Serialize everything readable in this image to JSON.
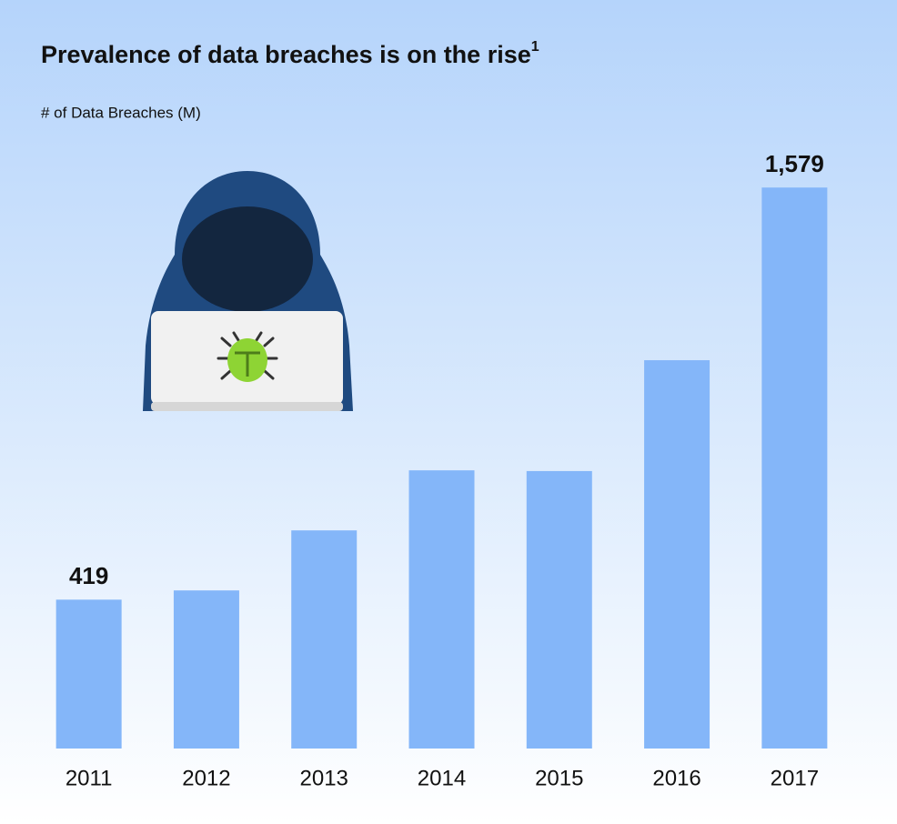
{
  "chart_data": {
    "type": "bar",
    "title": "Prevalence of data breaches is on the rise",
    "title_footnote": "1",
    "subtitle": "# of Data Breaches (M)",
    "categories": [
      "2011",
      "2012",
      "2013",
      "2014",
      "2015",
      "2016",
      "2017"
    ],
    "values": [
      419,
      445,
      614,
      783,
      781,
      1093,
      1579
    ],
    "value_labels": [
      "419",
      null,
      null,
      null,
      null,
      null,
      "1,579"
    ],
    "color": "#84b6f9",
    "ylim": [
      0,
      1600
    ]
  }
}
